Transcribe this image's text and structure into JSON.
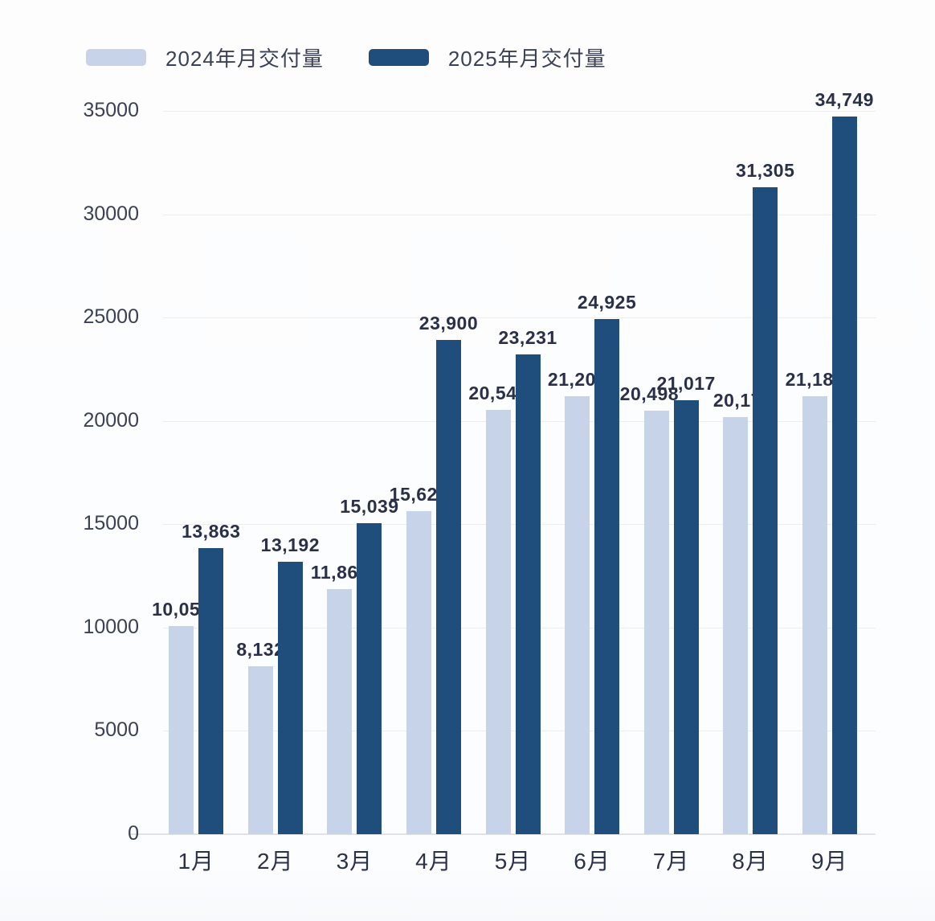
{
  "colors": {
    "series_2024": "#c6d3e9",
    "series_2025": "#1f4e7c",
    "grid": "#ededf0",
    "axis_text": "#3b4154",
    "value_label_text": "#2a3047",
    "background": "#fdfdfe"
  },
  "legend": {
    "items": [
      {
        "label": "2024年月交付量",
        "color": "#c6d3e9"
      },
      {
        "label": "2025年月交付量",
        "color": "#1f4e7c"
      }
    ]
  },
  "chart_data": {
    "type": "bar",
    "title": "",
    "xlabel": "",
    "ylabel": "",
    "categories": [
      "1月",
      "2月",
      "3月",
      "4月",
      "5月",
      "6月",
      "7月",
      "8月",
      "9月"
    ],
    "series": [
      {
        "name": "2024年月交付量",
        "color": "#c6d3e9",
        "values": [
          10055,
          8132,
          11866,
          15620,
          20544,
          21209,
          20498,
          20176,
          21181
        ]
      },
      {
        "name": "2025年月交付量",
        "color": "#1f4e7c",
        "values": [
          13863,
          13192,
          15039,
          23900,
          23231,
          24925,
          21017,
          31305,
          34749
        ]
      }
    ],
    "ylim": [
      0,
      35000
    ],
    "yticks": [
      0,
      5000,
      10000,
      15000,
      20000,
      25000,
      30000,
      35000
    ],
    "grid": true,
    "legend_position": "top",
    "value_labels": true
  }
}
